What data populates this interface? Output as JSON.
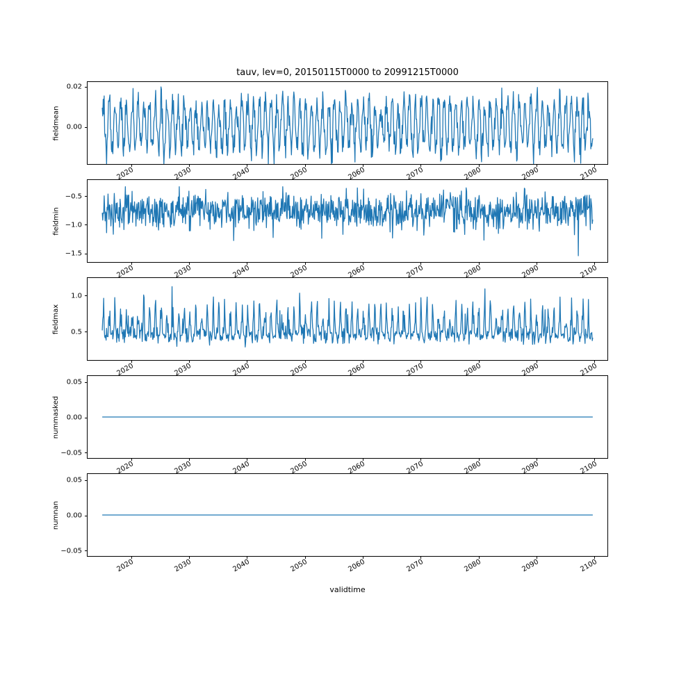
{
  "title": "tauv, lev=0, 20150115T0000 to 20991215T0000",
  "xlabel": "validtime",
  "chart_data": {
    "type": "line",
    "title": "tauv, lev=0, 20150115T0000 to 20991215T0000",
    "xlabel": "validtime",
    "line_color": "#1f77b4",
    "grid": false,
    "legend": "none",
    "xlim": [
      2012.5,
      2102.5
    ],
    "x": {
      "start": 2015.0417,
      "step": 0.0833333,
      "n": 1020
    },
    "xticks": [
      {
        "v": 2020,
        "label": "2020"
      },
      {
        "v": 2030,
        "label": "2030"
      },
      {
        "v": 2040,
        "label": "2040"
      },
      {
        "v": 2050,
        "label": "2050"
      },
      {
        "v": 2060,
        "label": "2060"
      },
      {
        "v": 2070,
        "label": "2070"
      },
      {
        "v": 2080,
        "label": "2080"
      },
      {
        "v": 2090,
        "label": "2090"
      },
      {
        "v": 2100,
        "label": "2100"
      }
    ],
    "subplots": [
      {
        "name": "fieldmean",
        "ylabel": "fieldmean",
        "ylim": [
          -0.019,
          0.0225
        ],
        "yticks": [
          {
            "v": 0.02,
            "label": "0.02"
          },
          {
            "v": 0.0,
            "label": "0.00"
          }
        ],
        "series": {
          "kind": "seasonal",
          "mean": 0.0008,
          "amp": 0.0115,
          "noise": 0.0042,
          "spike_p": 0.02,
          "spike": 0.006,
          "clamp": [
            -0.019,
            0.0222
          ],
          "seed": 7
        }
      },
      {
        "name": "fieldmin",
        "ylabel": "fieldmin",
        "ylim": [
          -1.67,
          -0.21
        ],
        "yticks": [
          {
            "v": -0.5,
            "label": "−0.5"
          },
          {
            "v": -1.0,
            "label": "−1.0"
          },
          {
            "v": -1.5,
            "label": "−1.5"
          }
        ],
        "series": {
          "kind": "noisy",
          "mean": -0.76,
          "amp": 0.05,
          "noise": 0.155,
          "spike_p": 0.01,
          "spike": 0.45,
          "clamp": [
            -1.6,
            -0.33
          ],
          "seed": 11
        }
      },
      {
        "name": "fieldmax",
        "ylabel": "fieldmax",
        "ylim": [
          0.094,
          1.245
        ],
        "yticks": [
          {
            "v": 1.0,
            "label": "1.0"
          },
          {
            "v": 0.5,
            "label": "0.5"
          }
        ],
        "series": {
          "kind": "spiky",
          "base": 0.44,
          "noise": 0.055,
          "amp": 0.4,
          "spike_p": 0.012,
          "spike": 0.3,
          "clamp": [
            0.27,
            1.22
          ],
          "seed": 23
        }
      },
      {
        "name": "nummasked",
        "ylabel": "nummasked",
        "ylim": [
          -0.0593,
          0.0593
        ],
        "yticks": [
          {
            "v": 0.05,
            "label": "0.05"
          },
          {
            "v": 0.0,
            "label": "0.00"
          },
          {
            "v": -0.05,
            "label": "−0.05"
          }
        ],
        "series": {
          "kind": "const",
          "value": 0,
          "seed": 31
        }
      },
      {
        "name": "numnan",
        "ylabel": "numnan",
        "ylim": [
          -0.0593,
          0.0593
        ],
        "yticks": [
          {
            "v": 0.05,
            "label": "0.05"
          },
          {
            "v": 0.0,
            "label": "0.00"
          },
          {
            "v": -0.05,
            "label": "−0.05"
          }
        ],
        "series": {
          "kind": "const",
          "value": 0,
          "seed": 37
        }
      }
    ]
  }
}
